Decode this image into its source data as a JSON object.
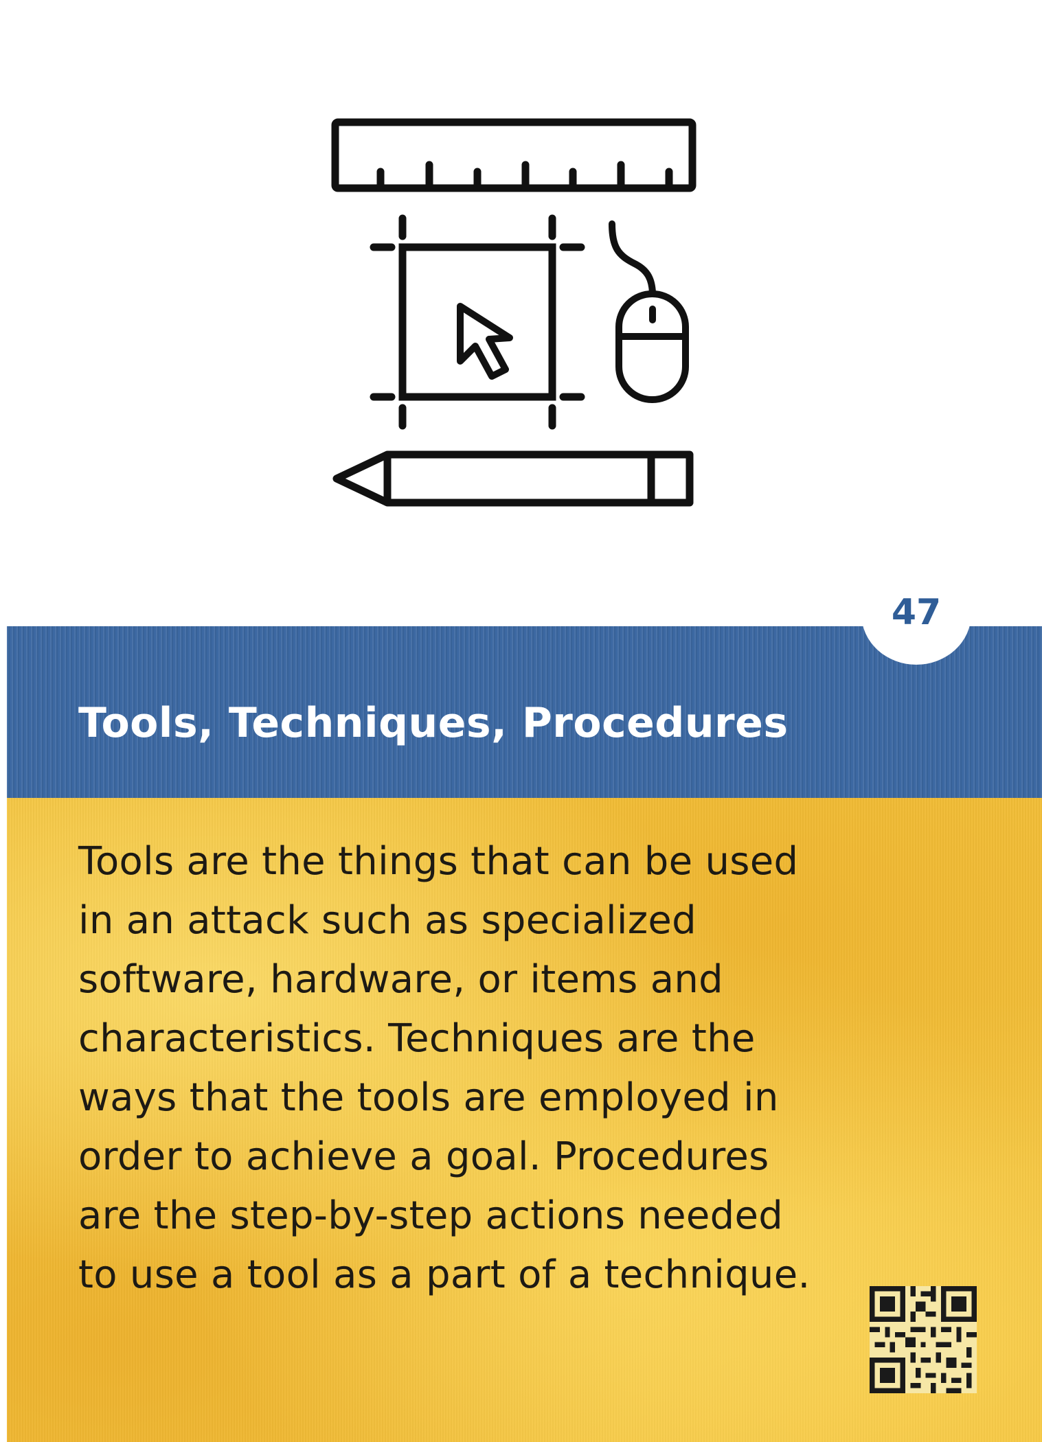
{
  "card": {
    "number": "47",
    "title": "Tools, Techniques, Procedures",
    "description_lines": [
      "Tools are the things that can be used",
      "in an attack such as specialized",
      "software, hardware, or items and",
      "characteristics. Techniques are the",
      "ways that the tools are employed in",
      "order to achieve a goal. Procedures",
      "are the step-by-step actions needed",
      "to use a tool as a part of a technique."
    ]
  },
  "illustration": {
    "icons": [
      "ruler-icon",
      "selection-box-icon",
      "cursor-arrow-icon",
      "mouse-icon",
      "pencil-icon"
    ]
  },
  "qr": {
    "icon": "qr-code-icon"
  },
  "colors": {
    "band": "#3c68a2",
    "number": "#2f5d97",
    "panel": "#f3c13a",
    "text": "#1d1a14",
    "title": "#ffffff"
  }
}
